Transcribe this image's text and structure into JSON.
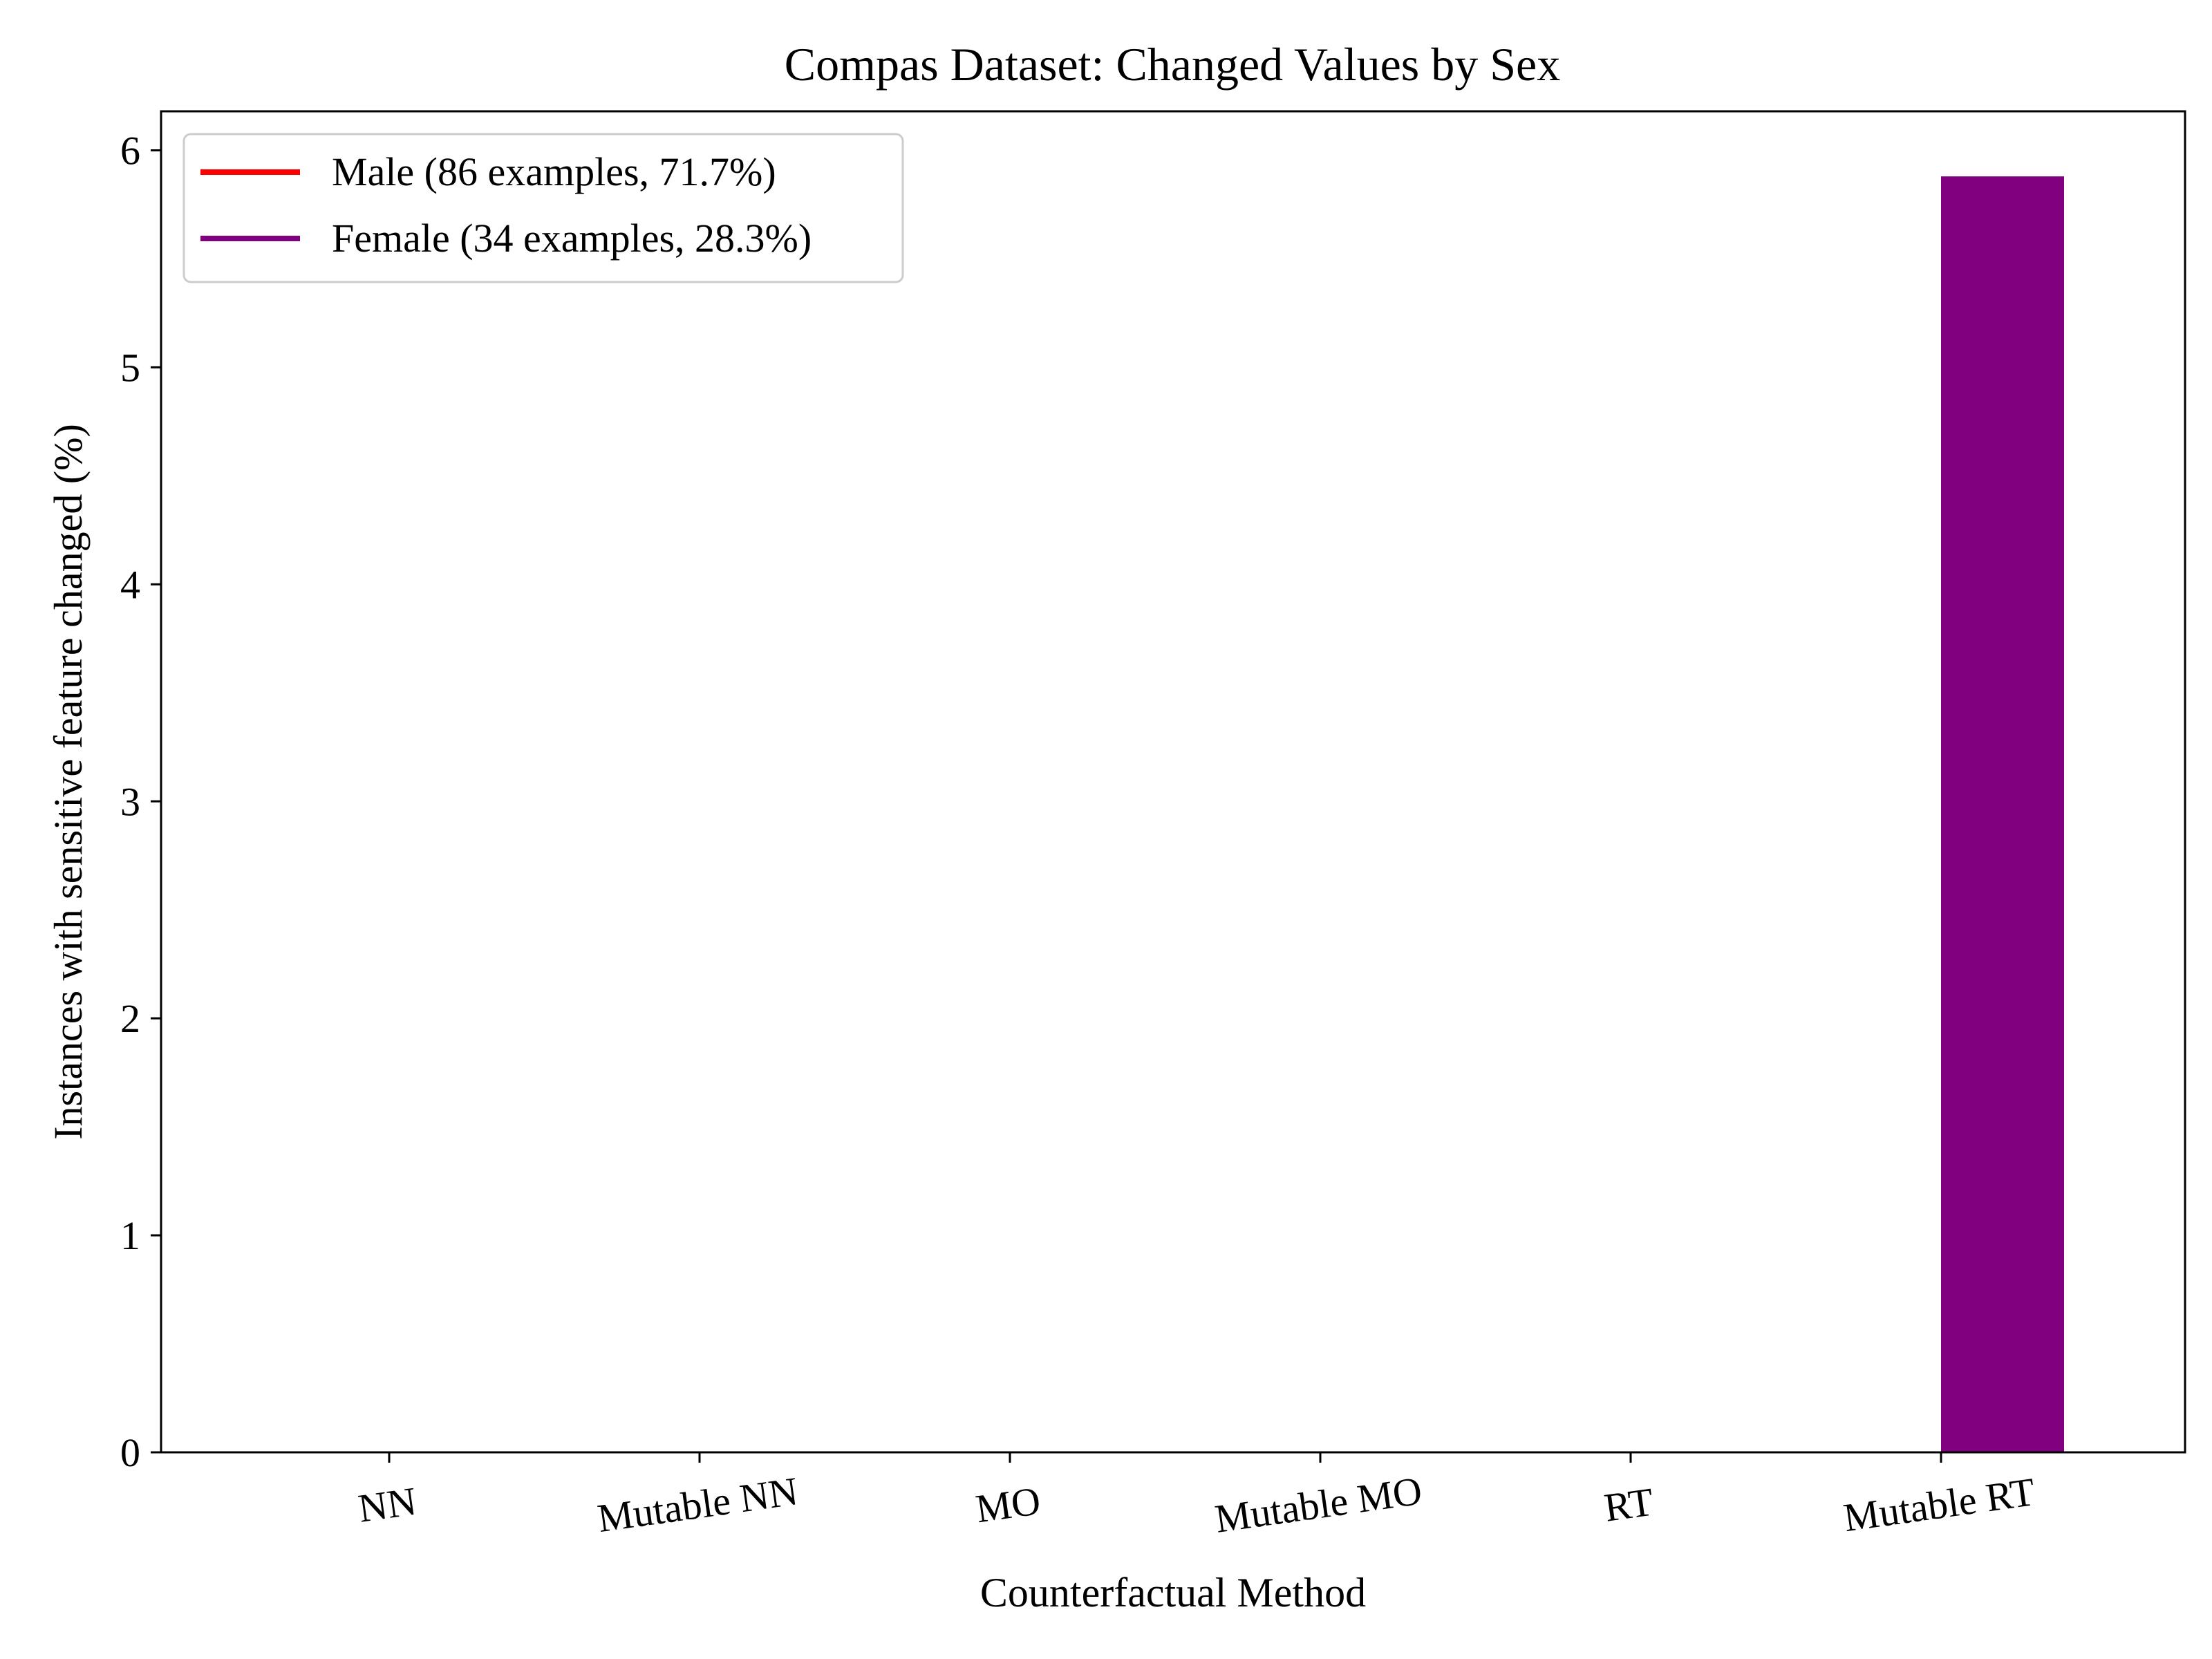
{
  "chart_data": {
    "type": "bar",
    "title": "Compas Dataset: Changed Values by Sex",
    "xlabel": "Counterfactual Method",
    "ylabel": "Instances with sensitive feature changed (%)",
    "categories": [
      "NN",
      "Mutable NN",
      "MO",
      "Mutable MO",
      "RT",
      "Mutable RT"
    ],
    "series": [
      {
        "name": "Male (86 examples, 71.7%)",
        "color": "#ff0000",
        "values": [
          0,
          0,
          0,
          0,
          0,
          0
        ]
      },
      {
        "name": "Female (34 examples, 28.3%)",
        "color": "#800080",
        "values": [
          0,
          0,
          0,
          0,
          0,
          5.88
        ]
      }
    ],
    "ylim": [
      0,
      6.18
    ],
    "yticks": [
      "0",
      "1",
      "2",
      "3",
      "4",
      "5",
      "6"
    ],
    "grid": false,
    "legend": "top-left"
  }
}
